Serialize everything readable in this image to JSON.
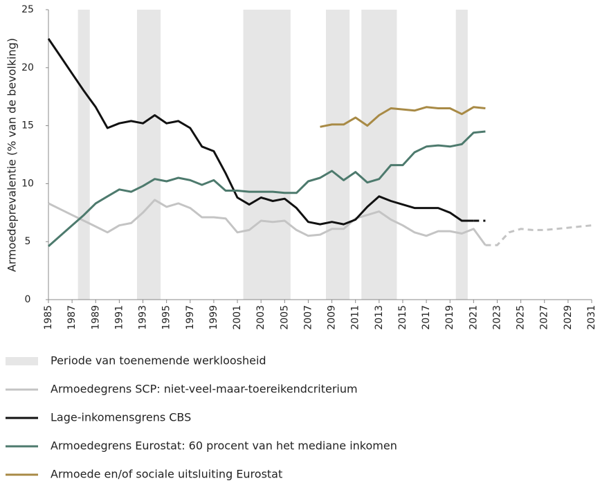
{
  "chart_data": {
    "type": "line",
    "y_label": "Armoedeprevalentie (% van de bevolking)",
    "x": [
      1985,
      1986,
      1987,
      1988,
      1989,
      1990,
      1991,
      1992,
      1993,
      1994,
      1995,
      1996,
      1997,
      1998,
      1999,
      2000,
      2001,
      2002,
      2003,
      2004,
      2005,
      2006,
      2007,
      2008,
      2009,
      2010,
      2011,
      2012,
      2013,
      2014,
      2015,
      2016,
      2017,
      2018,
      2019,
      2020,
      2021,
      2022,
      2023,
      2024,
      2025,
      2026,
      2027,
      2028,
      2029,
      2030,
      2031
    ],
    "xlim": [
      1985,
      2031
    ],
    "xticks": [
      1985,
      1987,
      1989,
      1991,
      1993,
      1995,
      1997,
      1999,
      2001,
      2003,
      2005,
      2007,
      2009,
      2011,
      2013,
      2015,
      2017,
      2019,
      2021,
      2023,
      2025,
      2027,
      2029,
      2031
    ],
    "ylim": [
      0,
      25
    ],
    "yticks": [
      0,
      5,
      10,
      15,
      20,
      25
    ],
    "shading": {
      "name": "Periode van toenemende werkloosheid",
      "color": "#e6e6e6",
      "periods": [
        [
          1987.5,
          1988.5
        ],
        [
          1992.5,
          1994.5
        ],
        [
          2001.5,
          2005.5
        ],
        [
          2008.5,
          2010.5
        ],
        [
          2011.5,
          2014.5
        ],
        [
          2019.5,
          2020.5
        ]
      ]
    },
    "series": [
      {
        "name": "Armoedegrens SCP: niet-veel-maar-toereikendcriterium",
        "color": "#c4c4c4",
        "dashed_from": 2022,
        "values": [
          8.3,
          7.8,
          7.3,
          6.8,
          6.3,
          5.8,
          6.4,
          6.6,
          7.5,
          8.6,
          8.0,
          8.3,
          7.9,
          7.1,
          7.1,
          7.0,
          5.8,
          6.0,
          6.8,
          6.7,
          6.8,
          6.0,
          5.5,
          5.6,
          6.1,
          6.1,
          7.0,
          7.3,
          7.6,
          6.9,
          6.4,
          5.8,
          5.5,
          5.9,
          5.9,
          5.7,
          6.1,
          4.7,
          4.7,
          5.8,
          6.1,
          6.0,
          6.0,
          6.1,
          6.2,
          6.3,
          6.4
        ]
      },
      {
        "name": "Lage-inkomensgrens CBS",
        "color": "#111111",
        "dashed_from": 2021,
        "values": [
          22.5,
          21.0,
          19.5,
          18.0,
          16.6,
          14.8,
          15.2,
          15.4,
          15.2,
          15.9,
          15.2,
          15.4,
          14.8,
          13.2,
          12.8,
          10.9,
          8.8,
          8.2,
          8.8,
          8.5,
          8.7,
          7.9,
          6.7,
          6.5,
          6.7,
          6.5,
          6.9,
          8.0,
          8.9,
          8.5,
          8.2,
          7.9,
          7.9,
          7.9,
          7.5,
          6.8,
          6.8,
          6.8,
          null,
          null,
          null,
          null,
          null,
          null,
          null,
          null,
          null
        ]
      },
      {
        "name": "Armoedegrens Eurostat: 60 procent van het mediane inkomen",
        "color": "#4d7a6d",
        "values": [
          4.6,
          5.5,
          6.4,
          7.3,
          8.3,
          8.9,
          9.5,
          9.3,
          9.8,
          10.4,
          10.2,
          10.5,
          10.3,
          9.9,
          10.3,
          9.4,
          9.4,
          9.3,
          9.3,
          9.3,
          9.2,
          9.2,
          10.2,
          10.5,
          11.1,
          10.3,
          11.0,
          10.1,
          10.4,
          11.6,
          11.6,
          12.7,
          13.2,
          13.3,
          13.2,
          13.4,
          14.4,
          14.5,
          null,
          null,
          null,
          null,
          null,
          null,
          null,
          null,
          null
        ]
      },
      {
        "name": "Armoede en/of sociale uitsluiting Eurostat",
        "color": "#a88a45",
        "values": [
          null,
          null,
          null,
          null,
          null,
          null,
          null,
          null,
          null,
          null,
          null,
          null,
          null,
          null,
          null,
          null,
          null,
          null,
          null,
          null,
          null,
          null,
          null,
          14.9,
          15.1,
          15.1,
          15.7,
          15.0,
          15.9,
          16.5,
          16.4,
          16.3,
          16.6,
          16.5,
          16.5,
          16.0,
          16.6,
          16.5,
          null,
          null,
          null,
          null,
          null,
          null,
          null,
          null,
          null
        ]
      }
    ]
  }
}
